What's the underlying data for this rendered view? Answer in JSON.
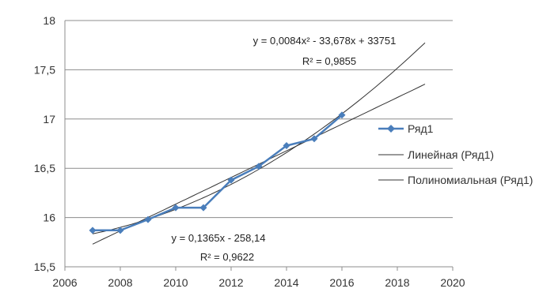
{
  "chart_data": {
    "type": "line",
    "title": "",
    "xlabel": "",
    "ylabel": "",
    "xlim": [
      2006,
      2020
    ],
    "ylim": [
      15.5,
      18
    ],
    "x_ticks": [
      2006,
      2008,
      2010,
      2012,
      2014,
      2016,
      2018,
      2020
    ],
    "y_ticks": [
      15.5,
      16,
      16.5,
      17,
      17.5,
      18
    ],
    "y_tick_labels": [
      "15,5",
      "16",
      "16,5",
      "17",
      "17,5",
      "18"
    ],
    "grid": {
      "horizontal": true,
      "vertical": false
    },
    "legend_position": "right",
    "series": [
      {
        "name": "Ряд1",
        "color": "#4a7ebb",
        "marker": "diamond",
        "x": [
          2007,
          2008,
          2009,
          2010,
          2011,
          2012,
          2013,
          2014,
          2015,
          2016
        ],
        "y": [
          15.87,
          15.87,
          15.98,
          16.1,
          16.1,
          16.38,
          16.52,
          16.73,
          16.8,
          17.04
        ]
      }
    ],
    "trendlines": [
      {
        "name": "Линейная (Ряд1)",
        "kind": "linear",
        "color": "#333333",
        "x_range": [
          2007,
          2019
        ],
        "equation": "y = 0,1365x - 258,14",
        "r_squared": "R² = 0,9622"
      },
      {
        "name": "Полиномиальная (Ряд1)",
        "kind": "polynomial",
        "color": "#333333",
        "x_range": [
          2007,
          2019
        ],
        "equation": "y = 0,0084x² - 33,678x + 33751",
        "r_squared": "R² = 0,9855"
      }
    ]
  }
}
